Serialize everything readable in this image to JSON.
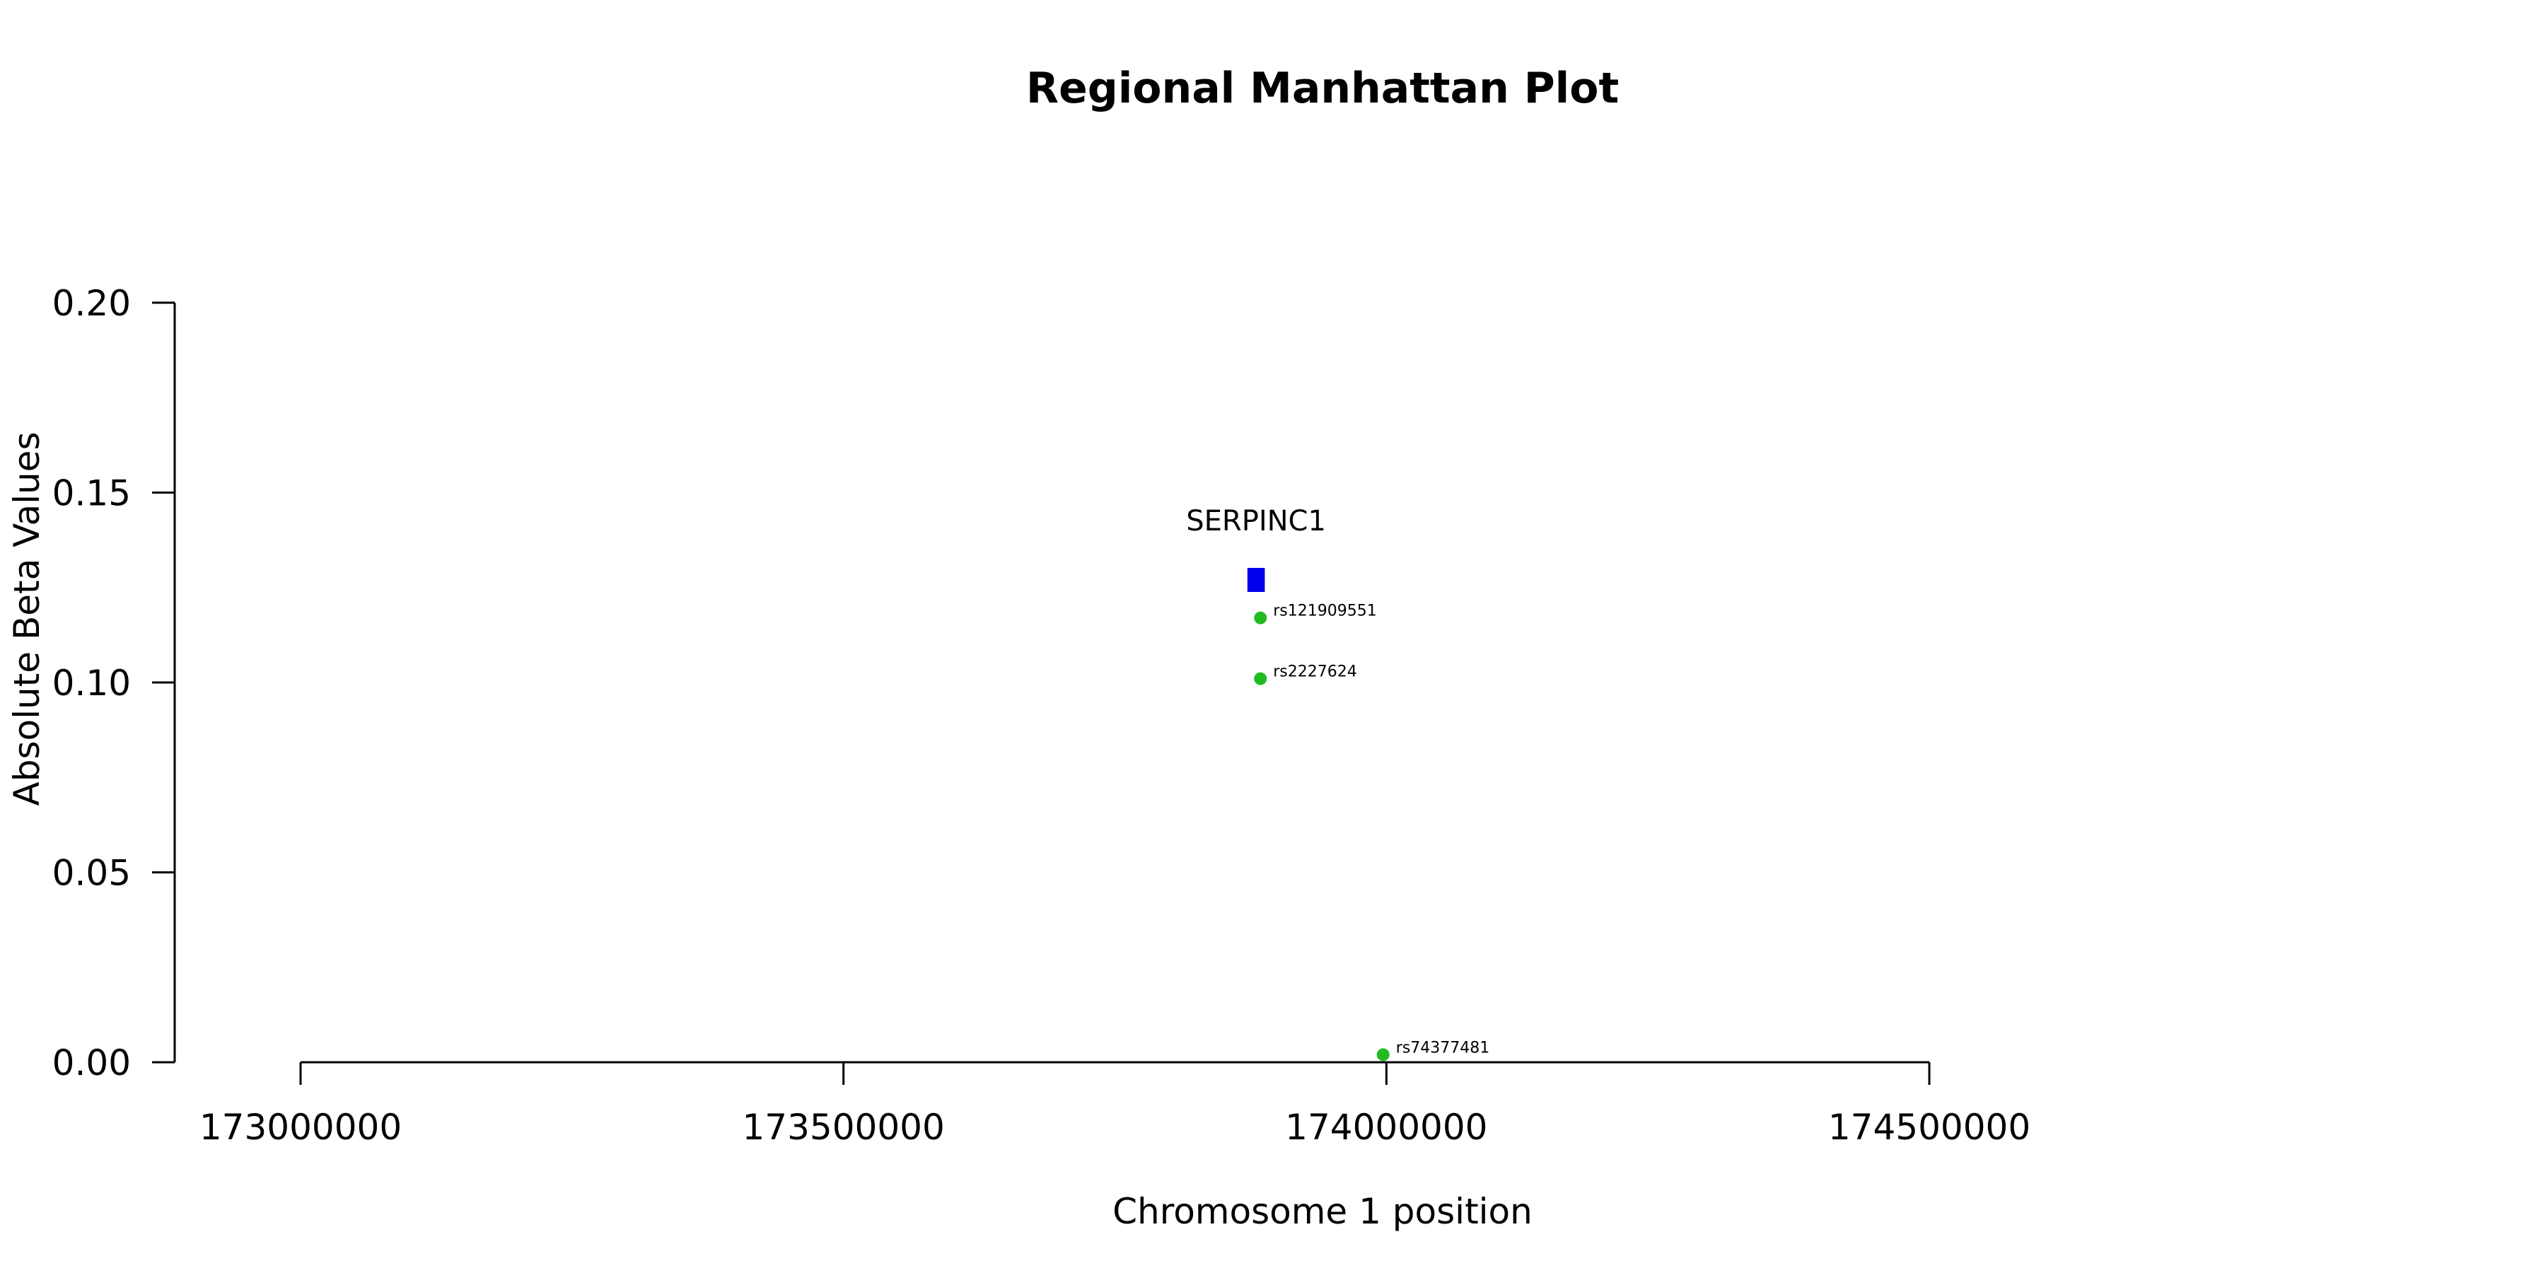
{
  "chart_data": {
    "type": "scatter",
    "title": "Regional Manhattan Plot",
    "xlabel": "Chromosome 1 position",
    "ylabel": "Absolute Beta Values",
    "xlim": [
      173000000,
      174500000
    ],
    "ylim": [
      0,
      0.2
    ],
    "x_ticks": [
      173000000,
      173500000,
      174000000,
      174500000
    ],
    "x_tick_labels": [
      "173000000",
      "173500000",
      "174000000",
      "174500000"
    ],
    "y_ticks": [
      0,
      0.05,
      0.1,
      0.15,
      0.2
    ],
    "y_tick_labels": [
      "0.00",
      "0.05",
      "0.10",
      "0.15",
      "0.20"
    ],
    "grid": false,
    "series": [
      {
        "point_color": "#22bb22",
        "points": [
          {
            "label": "rs121909551",
            "x": 173884000,
            "y": 0.117
          },
          {
            "label": "rs2227624",
            "x": 173884000,
            "y": 0.101
          },
          {
            "label": "rs74377481",
            "x": 173997000,
            "y": 0.002
          }
        ]
      }
    ],
    "genes": [
      {
        "name": "SERPINC1",
        "start": 173872000,
        "end": 173888000,
        "y": 0.127,
        "color": "#0000ee"
      }
    ]
  }
}
